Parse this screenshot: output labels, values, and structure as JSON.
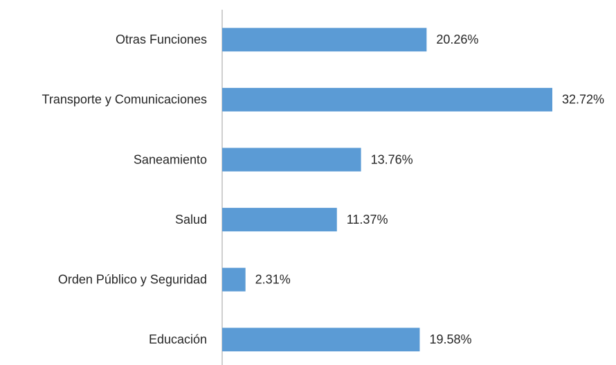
{
  "chart_data": {
    "type": "bar",
    "orientation": "horizontal",
    "categories": [
      "Otras Funciones",
      "Transporte y Comunicaciones",
      "Saneamiento",
      "Salud",
      "Orden Público y Seguridad",
      "Educación"
    ],
    "values": [
      20.26,
      32.72,
      13.76,
      11.37,
      2.31,
      19.58
    ],
    "value_labels": [
      "20.26%",
      "32.72%",
      "13.76%",
      "11.37%",
      "2.31%",
      "19.58%"
    ],
    "color": "#5b9bd5"
  }
}
